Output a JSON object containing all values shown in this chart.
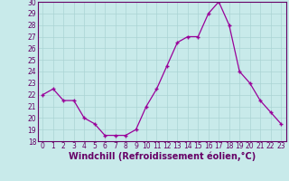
{
  "x": [
    0,
    1,
    2,
    3,
    4,
    5,
    6,
    7,
    8,
    9,
    10,
    11,
    12,
    13,
    14,
    15,
    16,
    17,
    18,
    19,
    20,
    21,
    22,
    23
  ],
  "y": [
    22,
    22.5,
    21.5,
    21.5,
    20,
    19.5,
    18.5,
    18.5,
    18.5,
    19,
    21,
    22.5,
    24.5,
    26.5,
    27,
    27,
    29,
    30,
    28,
    24,
    23,
    21.5,
    20.5,
    19.5
  ],
  "xlabel": "Windchill (Refroidissement éolien,°C)",
  "ylim": [
    18,
    30
  ],
  "yticks": [
    18,
    19,
    20,
    21,
    22,
    23,
    24,
    25,
    26,
    27,
    28,
    29,
    30
  ],
  "xticks": [
    0,
    1,
    2,
    3,
    4,
    5,
    6,
    7,
    8,
    9,
    10,
    11,
    12,
    13,
    14,
    15,
    16,
    17,
    18,
    19,
    20,
    21,
    22,
    23
  ],
  "line_color": "#990099",
  "marker": "+",
  "bg_color": "#c8eaea",
  "grid_color": "#aad4d4",
  "tick_color": "#660066",
  "label_color": "#660066",
  "tick_fontsize": 5.5,
  "label_fontsize": 7.0
}
